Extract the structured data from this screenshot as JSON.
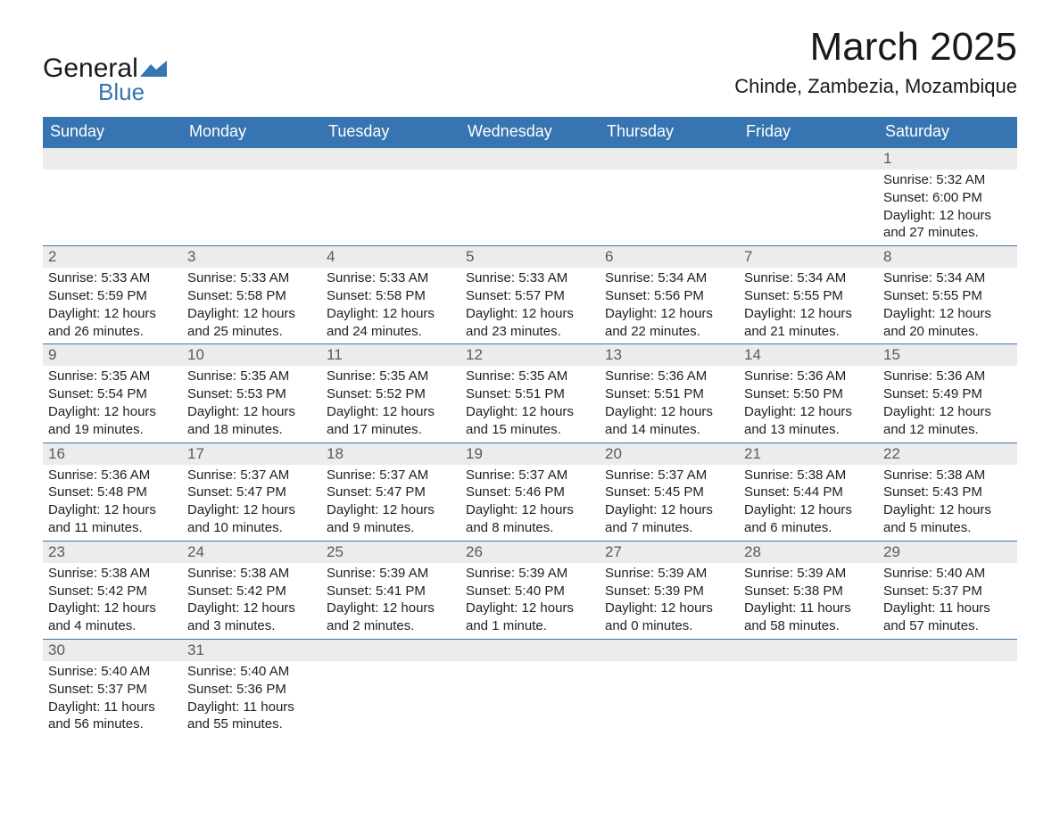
{
  "branding": {
    "word1": "General",
    "word2": "Blue",
    "logo_color": "#3774b2",
    "text_color": "#1a1a1a"
  },
  "header": {
    "month_title": "March 2025",
    "location": "Chinde, Zambezia, Mozambique"
  },
  "calendar": {
    "type": "table",
    "columns": [
      "Sunday",
      "Monday",
      "Tuesday",
      "Wednesday",
      "Thursday",
      "Friday",
      "Saturday"
    ],
    "header_bg": "#3774b2",
    "header_fg": "#ffffff",
    "daynum_bg": "#ececec",
    "daynum_fg": "#5a5a5a",
    "row_divider_color": "#3774b2",
    "body_fontsize": 15,
    "header_fontsize": 18,
    "weeks": [
      [
        null,
        null,
        null,
        null,
        null,
        null,
        {
          "day": "1",
          "sunrise": "Sunrise: 5:32 AM",
          "sunset": "Sunset: 6:00 PM",
          "daylight1": "Daylight: 12 hours",
          "daylight2": "and 27 minutes."
        }
      ],
      [
        {
          "day": "2",
          "sunrise": "Sunrise: 5:33 AM",
          "sunset": "Sunset: 5:59 PM",
          "daylight1": "Daylight: 12 hours",
          "daylight2": "and 26 minutes."
        },
        {
          "day": "3",
          "sunrise": "Sunrise: 5:33 AM",
          "sunset": "Sunset: 5:58 PM",
          "daylight1": "Daylight: 12 hours",
          "daylight2": "and 25 minutes."
        },
        {
          "day": "4",
          "sunrise": "Sunrise: 5:33 AM",
          "sunset": "Sunset: 5:58 PM",
          "daylight1": "Daylight: 12 hours",
          "daylight2": "and 24 minutes."
        },
        {
          "day": "5",
          "sunrise": "Sunrise: 5:33 AM",
          "sunset": "Sunset: 5:57 PM",
          "daylight1": "Daylight: 12 hours",
          "daylight2": "and 23 minutes."
        },
        {
          "day": "6",
          "sunrise": "Sunrise: 5:34 AM",
          "sunset": "Sunset: 5:56 PM",
          "daylight1": "Daylight: 12 hours",
          "daylight2": "and 22 minutes."
        },
        {
          "day": "7",
          "sunrise": "Sunrise: 5:34 AM",
          "sunset": "Sunset: 5:55 PM",
          "daylight1": "Daylight: 12 hours",
          "daylight2": "and 21 minutes."
        },
        {
          "day": "8",
          "sunrise": "Sunrise: 5:34 AM",
          "sunset": "Sunset: 5:55 PM",
          "daylight1": "Daylight: 12 hours",
          "daylight2": "and 20 minutes."
        }
      ],
      [
        {
          "day": "9",
          "sunrise": "Sunrise: 5:35 AM",
          "sunset": "Sunset: 5:54 PM",
          "daylight1": "Daylight: 12 hours",
          "daylight2": "and 19 minutes."
        },
        {
          "day": "10",
          "sunrise": "Sunrise: 5:35 AM",
          "sunset": "Sunset: 5:53 PM",
          "daylight1": "Daylight: 12 hours",
          "daylight2": "and 18 minutes."
        },
        {
          "day": "11",
          "sunrise": "Sunrise: 5:35 AM",
          "sunset": "Sunset: 5:52 PM",
          "daylight1": "Daylight: 12 hours",
          "daylight2": "and 17 minutes."
        },
        {
          "day": "12",
          "sunrise": "Sunrise: 5:35 AM",
          "sunset": "Sunset: 5:51 PM",
          "daylight1": "Daylight: 12 hours",
          "daylight2": "and 15 minutes."
        },
        {
          "day": "13",
          "sunrise": "Sunrise: 5:36 AM",
          "sunset": "Sunset: 5:51 PM",
          "daylight1": "Daylight: 12 hours",
          "daylight2": "and 14 minutes."
        },
        {
          "day": "14",
          "sunrise": "Sunrise: 5:36 AM",
          "sunset": "Sunset: 5:50 PM",
          "daylight1": "Daylight: 12 hours",
          "daylight2": "and 13 minutes."
        },
        {
          "day": "15",
          "sunrise": "Sunrise: 5:36 AM",
          "sunset": "Sunset: 5:49 PM",
          "daylight1": "Daylight: 12 hours",
          "daylight2": "and 12 minutes."
        }
      ],
      [
        {
          "day": "16",
          "sunrise": "Sunrise: 5:36 AM",
          "sunset": "Sunset: 5:48 PM",
          "daylight1": "Daylight: 12 hours",
          "daylight2": "and 11 minutes."
        },
        {
          "day": "17",
          "sunrise": "Sunrise: 5:37 AM",
          "sunset": "Sunset: 5:47 PM",
          "daylight1": "Daylight: 12 hours",
          "daylight2": "and 10 minutes."
        },
        {
          "day": "18",
          "sunrise": "Sunrise: 5:37 AM",
          "sunset": "Sunset: 5:47 PM",
          "daylight1": "Daylight: 12 hours",
          "daylight2": "and 9 minutes."
        },
        {
          "day": "19",
          "sunrise": "Sunrise: 5:37 AM",
          "sunset": "Sunset: 5:46 PM",
          "daylight1": "Daylight: 12 hours",
          "daylight2": "and 8 minutes."
        },
        {
          "day": "20",
          "sunrise": "Sunrise: 5:37 AM",
          "sunset": "Sunset: 5:45 PM",
          "daylight1": "Daylight: 12 hours",
          "daylight2": "and 7 minutes."
        },
        {
          "day": "21",
          "sunrise": "Sunrise: 5:38 AM",
          "sunset": "Sunset: 5:44 PM",
          "daylight1": "Daylight: 12 hours",
          "daylight2": "and 6 minutes."
        },
        {
          "day": "22",
          "sunrise": "Sunrise: 5:38 AM",
          "sunset": "Sunset: 5:43 PM",
          "daylight1": "Daylight: 12 hours",
          "daylight2": "and 5 minutes."
        }
      ],
      [
        {
          "day": "23",
          "sunrise": "Sunrise: 5:38 AM",
          "sunset": "Sunset: 5:42 PM",
          "daylight1": "Daylight: 12 hours",
          "daylight2": "and 4 minutes."
        },
        {
          "day": "24",
          "sunrise": "Sunrise: 5:38 AM",
          "sunset": "Sunset: 5:42 PM",
          "daylight1": "Daylight: 12 hours",
          "daylight2": "and 3 minutes."
        },
        {
          "day": "25",
          "sunrise": "Sunrise: 5:39 AM",
          "sunset": "Sunset: 5:41 PM",
          "daylight1": "Daylight: 12 hours",
          "daylight2": "and 2 minutes."
        },
        {
          "day": "26",
          "sunrise": "Sunrise: 5:39 AM",
          "sunset": "Sunset: 5:40 PM",
          "daylight1": "Daylight: 12 hours",
          "daylight2": "and 1 minute."
        },
        {
          "day": "27",
          "sunrise": "Sunrise: 5:39 AM",
          "sunset": "Sunset: 5:39 PM",
          "daylight1": "Daylight: 12 hours",
          "daylight2": "and 0 minutes."
        },
        {
          "day": "28",
          "sunrise": "Sunrise: 5:39 AM",
          "sunset": "Sunset: 5:38 PM",
          "daylight1": "Daylight: 11 hours",
          "daylight2": "and 58 minutes."
        },
        {
          "day": "29",
          "sunrise": "Sunrise: 5:40 AM",
          "sunset": "Sunset: 5:37 PM",
          "daylight1": "Daylight: 11 hours",
          "daylight2": "and 57 minutes."
        }
      ],
      [
        {
          "day": "30",
          "sunrise": "Sunrise: 5:40 AM",
          "sunset": "Sunset: 5:37 PM",
          "daylight1": "Daylight: 11 hours",
          "daylight2": "and 56 minutes."
        },
        {
          "day": "31",
          "sunrise": "Sunrise: 5:40 AM",
          "sunset": "Sunset: 5:36 PM",
          "daylight1": "Daylight: 11 hours",
          "daylight2": "and 55 minutes."
        },
        null,
        null,
        null,
        null,
        null
      ]
    ]
  }
}
